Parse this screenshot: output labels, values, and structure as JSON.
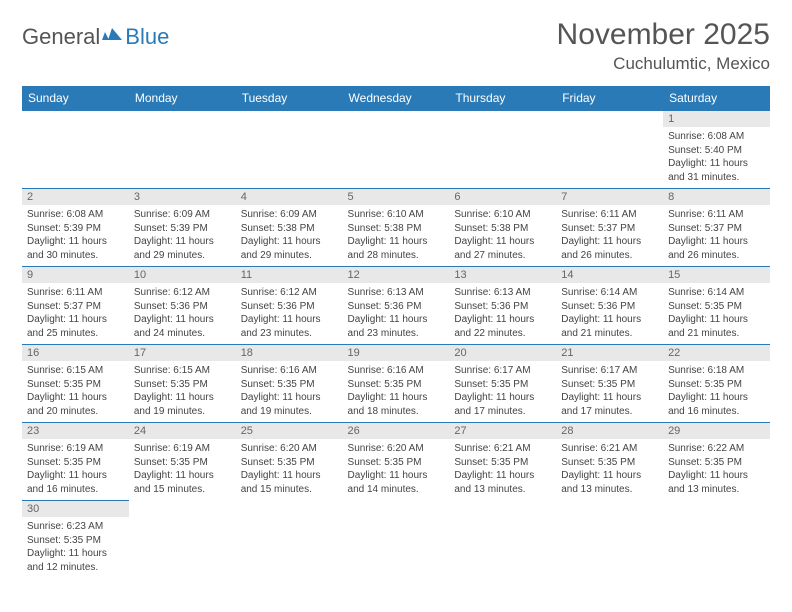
{
  "logo": {
    "part1": "General",
    "part2": "Blue"
  },
  "title": "November 2025",
  "location": "Cuchulumtic, Mexico",
  "colors": {
    "header_bg": "#2a7ab8",
    "header_text": "#ffffff",
    "daynum_bg": "#e8e8e8",
    "border": "#2a7ab8",
    "body_text": "#444444",
    "page_bg": "#ffffff"
  },
  "typography": {
    "title_fontsize": 30,
    "location_fontsize": 17,
    "weekday_fontsize": 12,
    "daynum_fontsize": 11,
    "body_fontsize": 10
  },
  "weekdays": [
    "Sunday",
    "Monday",
    "Tuesday",
    "Wednesday",
    "Thursday",
    "Friday",
    "Saturday"
  ],
  "rows": [
    [
      null,
      null,
      null,
      null,
      null,
      null,
      {
        "n": "1",
        "sr": "Sunrise: 6:08 AM",
        "ss": "Sunset: 5:40 PM",
        "dl": "Daylight: 11 hours and 31 minutes."
      }
    ],
    [
      {
        "n": "2",
        "sr": "Sunrise: 6:08 AM",
        "ss": "Sunset: 5:39 PM",
        "dl": "Daylight: 11 hours and 30 minutes."
      },
      {
        "n": "3",
        "sr": "Sunrise: 6:09 AM",
        "ss": "Sunset: 5:39 PM",
        "dl": "Daylight: 11 hours and 29 minutes."
      },
      {
        "n": "4",
        "sr": "Sunrise: 6:09 AM",
        "ss": "Sunset: 5:38 PM",
        "dl": "Daylight: 11 hours and 29 minutes."
      },
      {
        "n": "5",
        "sr": "Sunrise: 6:10 AM",
        "ss": "Sunset: 5:38 PM",
        "dl": "Daylight: 11 hours and 28 minutes."
      },
      {
        "n": "6",
        "sr": "Sunrise: 6:10 AM",
        "ss": "Sunset: 5:38 PM",
        "dl": "Daylight: 11 hours and 27 minutes."
      },
      {
        "n": "7",
        "sr": "Sunrise: 6:11 AM",
        "ss": "Sunset: 5:37 PM",
        "dl": "Daylight: 11 hours and 26 minutes."
      },
      {
        "n": "8",
        "sr": "Sunrise: 6:11 AM",
        "ss": "Sunset: 5:37 PM",
        "dl": "Daylight: 11 hours and 26 minutes."
      }
    ],
    [
      {
        "n": "9",
        "sr": "Sunrise: 6:11 AM",
        "ss": "Sunset: 5:37 PM",
        "dl": "Daylight: 11 hours and 25 minutes."
      },
      {
        "n": "10",
        "sr": "Sunrise: 6:12 AM",
        "ss": "Sunset: 5:36 PM",
        "dl": "Daylight: 11 hours and 24 minutes."
      },
      {
        "n": "11",
        "sr": "Sunrise: 6:12 AM",
        "ss": "Sunset: 5:36 PM",
        "dl": "Daylight: 11 hours and 23 minutes."
      },
      {
        "n": "12",
        "sr": "Sunrise: 6:13 AM",
        "ss": "Sunset: 5:36 PM",
        "dl": "Daylight: 11 hours and 23 minutes."
      },
      {
        "n": "13",
        "sr": "Sunrise: 6:13 AM",
        "ss": "Sunset: 5:36 PM",
        "dl": "Daylight: 11 hours and 22 minutes."
      },
      {
        "n": "14",
        "sr": "Sunrise: 6:14 AM",
        "ss": "Sunset: 5:36 PM",
        "dl": "Daylight: 11 hours and 21 minutes."
      },
      {
        "n": "15",
        "sr": "Sunrise: 6:14 AM",
        "ss": "Sunset: 5:35 PM",
        "dl": "Daylight: 11 hours and 21 minutes."
      }
    ],
    [
      {
        "n": "16",
        "sr": "Sunrise: 6:15 AM",
        "ss": "Sunset: 5:35 PM",
        "dl": "Daylight: 11 hours and 20 minutes."
      },
      {
        "n": "17",
        "sr": "Sunrise: 6:15 AM",
        "ss": "Sunset: 5:35 PM",
        "dl": "Daylight: 11 hours and 19 minutes."
      },
      {
        "n": "18",
        "sr": "Sunrise: 6:16 AM",
        "ss": "Sunset: 5:35 PM",
        "dl": "Daylight: 11 hours and 19 minutes."
      },
      {
        "n": "19",
        "sr": "Sunrise: 6:16 AM",
        "ss": "Sunset: 5:35 PM",
        "dl": "Daylight: 11 hours and 18 minutes."
      },
      {
        "n": "20",
        "sr": "Sunrise: 6:17 AM",
        "ss": "Sunset: 5:35 PM",
        "dl": "Daylight: 11 hours and 17 minutes."
      },
      {
        "n": "21",
        "sr": "Sunrise: 6:17 AM",
        "ss": "Sunset: 5:35 PM",
        "dl": "Daylight: 11 hours and 17 minutes."
      },
      {
        "n": "22",
        "sr": "Sunrise: 6:18 AM",
        "ss": "Sunset: 5:35 PM",
        "dl": "Daylight: 11 hours and 16 minutes."
      }
    ],
    [
      {
        "n": "23",
        "sr": "Sunrise: 6:19 AM",
        "ss": "Sunset: 5:35 PM",
        "dl": "Daylight: 11 hours and 16 minutes."
      },
      {
        "n": "24",
        "sr": "Sunrise: 6:19 AM",
        "ss": "Sunset: 5:35 PM",
        "dl": "Daylight: 11 hours and 15 minutes."
      },
      {
        "n": "25",
        "sr": "Sunrise: 6:20 AM",
        "ss": "Sunset: 5:35 PM",
        "dl": "Daylight: 11 hours and 15 minutes."
      },
      {
        "n": "26",
        "sr": "Sunrise: 6:20 AM",
        "ss": "Sunset: 5:35 PM",
        "dl": "Daylight: 11 hours and 14 minutes."
      },
      {
        "n": "27",
        "sr": "Sunrise: 6:21 AM",
        "ss": "Sunset: 5:35 PM",
        "dl": "Daylight: 11 hours and 13 minutes."
      },
      {
        "n": "28",
        "sr": "Sunrise: 6:21 AM",
        "ss": "Sunset: 5:35 PM",
        "dl": "Daylight: 11 hours and 13 minutes."
      },
      {
        "n": "29",
        "sr": "Sunrise: 6:22 AM",
        "ss": "Sunset: 5:35 PM",
        "dl": "Daylight: 11 hours and 13 minutes."
      }
    ],
    [
      {
        "n": "30",
        "sr": "Sunrise: 6:23 AM",
        "ss": "Sunset: 5:35 PM",
        "dl": "Daylight: 11 hours and 12 minutes."
      },
      null,
      null,
      null,
      null,
      null,
      null
    ]
  ]
}
